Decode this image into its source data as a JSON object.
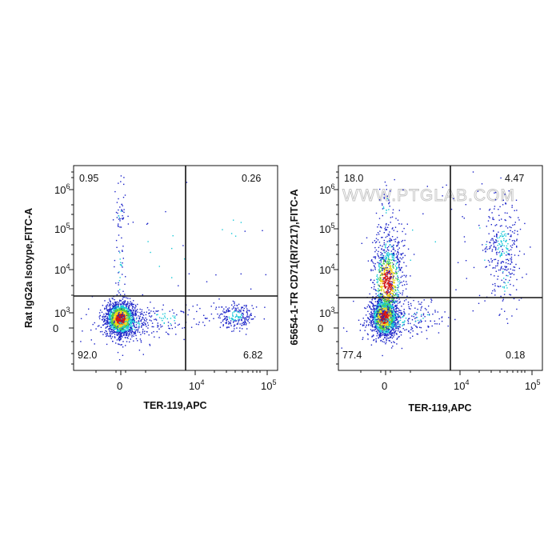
{
  "chart_data": [
    {
      "type": "scatter",
      "subtype": "flow-cytometry-density-dot-plot-with-quadrant-gates",
      "xlabel": "TER-119,APC",
      "ylabel": "Rat IgG2a Isotype,FITC-A",
      "x_scale": "biexponential",
      "y_scale": "biexponential",
      "x_ticks": [
        {
          "base": "0",
          "exp": ""
        },
        {
          "base": "10",
          "exp": "4"
        },
        {
          "base": "10",
          "exp": "5"
        }
      ],
      "y_ticks": [
        {
          "base": "0",
          "exp": ""
        },
        {
          "base": "10",
          "exp": "3"
        },
        {
          "base": "10",
          "exp": "4"
        },
        {
          "base": "10",
          "exp": "5"
        },
        {
          "base": "10",
          "exp": "6"
        }
      ],
      "quadrant_percentages": {
        "upper_left": "0.95",
        "upper_right": "0.26",
        "lower_left": "92.0",
        "lower_right": "6.82"
      },
      "gate_approx": {
        "x": 7000,
        "y": 2000
      },
      "populations": [
        {
          "name": "TER-119 negative / FITC negative",
          "center": {
            "x": 0,
            "y": 600
          },
          "share_percent": 92.0
        },
        {
          "name": "TER-119 positive / FITC negative",
          "center": {
            "x": 40000,
            "y": 800
          },
          "share_percent": 6.82
        },
        {
          "name": "sparse FITC positive events",
          "center": {
            "x": 0,
            "y": 30000
          },
          "share_percent": 0.95
        }
      ]
    },
    {
      "type": "scatter",
      "subtype": "flow-cytometry-density-dot-plot-with-quadrant-gates",
      "xlabel": "TER-119,APC",
      "ylabel": "65654-1-TR CD71(RI7217),FITC-A",
      "x_scale": "biexponential",
      "y_scale": "biexponential",
      "x_ticks": [
        {
          "base": "0",
          "exp": ""
        },
        {
          "base": "10",
          "exp": "4"
        },
        {
          "base": "10",
          "exp": "5"
        }
      ],
      "y_ticks": [
        {
          "base": "0",
          "exp": ""
        },
        {
          "base": "10",
          "exp": "3"
        },
        {
          "base": "10",
          "exp": "4"
        },
        {
          "base": "10",
          "exp": "5"
        },
        {
          "base": "10",
          "exp": "6"
        }
      ],
      "quadrant_percentages": {
        "upper_left": "18.0",
        "upper_right": "4.47",
        "lower_left": "77.4",
        "lower_right": "0.18"
      },
      "gate_approx": {
        "x": 7000,
        "y": 2000
      },
      "populations": [
        {
          "name": "TER-119 negative / CD71 negative",
          "center": {
            "x": 0,
            "y": 600
          },
          "share_percent": 77.4
        },
        {
          "name": "TER-119 negative / CD71 positive",
          "center": {
            "x": 0,
            "y": 10000
          },
          "share_percent": 18.0
        },
        {
          "name": "TER-119 positive / CD71 positive",
          "center": {
            "x": 40000,
            "y": 50000
          },
          "share_percent": 4.47
        }
      ]
    }
  ],
  "watermark": "WWW.PTGLAB.COM",
  "colors": {
    "density_low": "#1a22c8",
    "density_mid": "#19c9d8",
    "density_midhigh": "#4ccb3e",
    "density_high": "#f2d21a",
    "density_peak": "#d11616",
    "gate": "#111111"
  }
}
